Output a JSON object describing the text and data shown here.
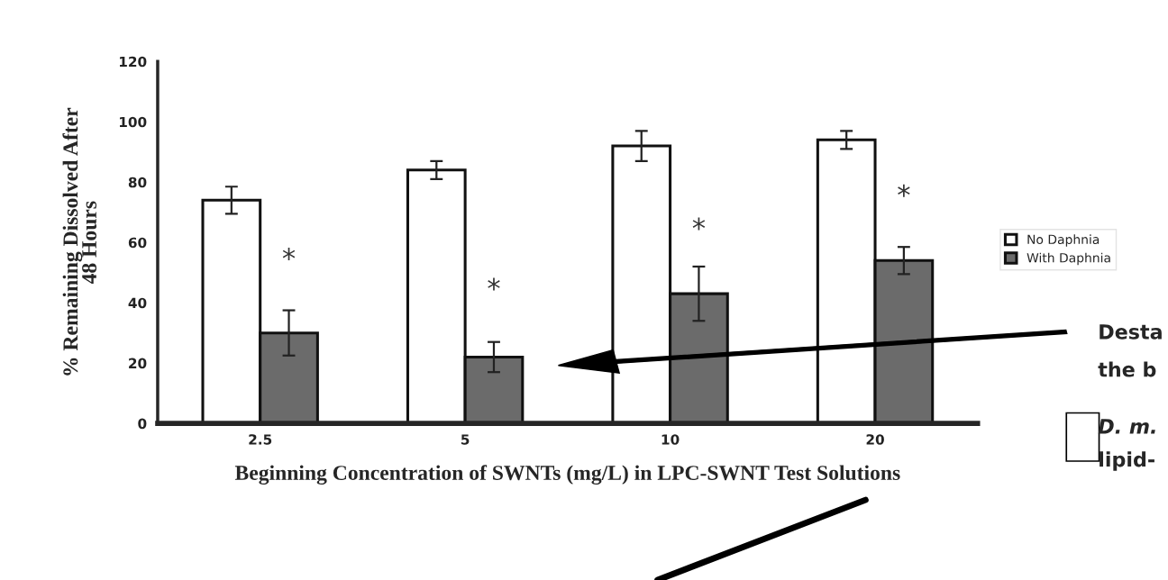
{
  "chart_data": {
    "type": "bar",
    "xlabel": "Beginning Concentration of SWNTs (mg/L) in LPC-SWNT Test Solutions",
    "ylabel": "% Remaining Dissolved After\n48 Hours",
    "categories": [
      "2.5",
      "5",
      "10",
      "20"
    ],
    "series": [
      {
        "name": "No Daphnia",
        "color": "#ffffff",
        "values": [
          74,
          84,
          92,
          94
        ],
        "errors": [
          4.5,
          3,
          5,
          3
        ]
      },
      {
        "name": "With Daphnia",
        "color": "#6b6b6b",
        "values": [
          30,
          22,
          43,
          54
        ],
        "errors": [
          7.5,
          5,
          9,
          4.5
        ]
      }
    ],
    "ylim": [
      0,
      120
    ],
    "yticks": [
      0,
      20,
      40,
      60,
      80,
      100,
      120
    ],
    "legend": "right",
    "grid": false,
    "annotations": [
      {
        "text": "*",
        "x": "2.5",
        "y": 54
      },
      {
        "text": "*",
        "x": "5",
        "y": 44
      },
      {
        "text": "*",
        "x": "10",
        "y": 64
      },
      {
        "text": "*",
        "x": "20",
        "y": 75
      },
      "Desta",
      "the b",
      "D. m.",
      "lipid-"
    ]
  }
}
